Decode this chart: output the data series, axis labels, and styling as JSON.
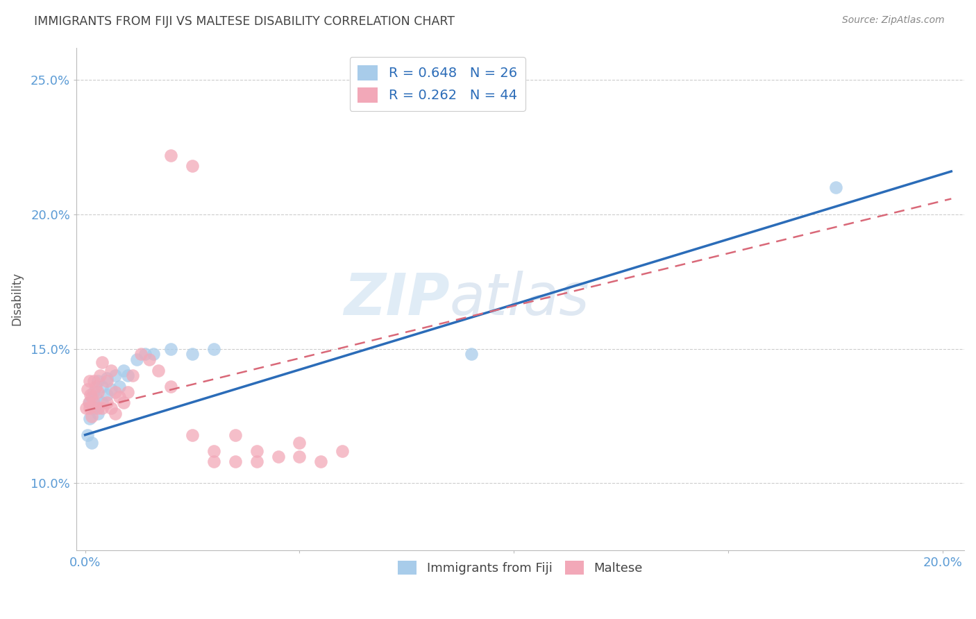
{
  "title": "IMMIGRANTS FROM FIJI VS MALTESE DISABILITY CORRELATION CHART",
  "source": "Source: ZipAtlas.com",
  "ylabel_label": "Disability",
  "xlim": [
    -0.002,
    0.205
  ],
  "ylim": [
    0.075,
    0.262
  ],
  "fiji_R": 0.648,
  "fiji_N": 26,
  "maltese_R": 0.262,
  "maltese_N": 44,
  "fiji_color": "#A8CCEA",
  "maltese_color": "#F2A8B8",
  "fiji_line_color": "#2B6CB8",
  "maltese_line_color": "#D96878",
  "watermark_zip": "ZIP",
  "watermark_atlas": "atlas",
  "fiji_x": [
    0.0005,
    0.001,
    0.001,
    0.0015,
    0.002,
    0.002,
    0.0025,
    0.003,
    0.003,
    0.004,
    0.004,
    0.005,
    0.005,
    0.006,
    0.007,
    0.008,
    0.009,
    0.01,
    0.012,
    0.014,
    0.016,
    0.02,
    0.025,
    0.03,
    0.09,
    0.175
  ],
  "fiji_y": [
    0.118,
    0.124,
    0.13,
    0.115,
    0.128,
    0.134,
    0.132,
    0.126,
    0.138,
    0.13,
    0.136,
    0.133,
    0.139,
    0.135,
    0.14,
    0.136,
    0.142,
    0.14,
    0.146,
    0.148,
    0.148,
    0.15,
    0.148,
    0.15,
    0.148,
    0.21
  ],
  "maltese_x": [
    0.0003,
    0.0005,
    0.0008,
    0.001,
    0.001,
    0.0012,
    0.0015,
    0.0015,
    0.002,
    0.002,
    0.0025,
    0.003,
    0.003,
    0.0035,
    0.004,
    0.004,
    0.005,
    0.005,
    0.006,
    0.006,
    0.007,
    0.007,
    0.008,
    0.009,
    0.01,
    0.011,
    0.013,
    0.015,
    0.017,
    0.02,
    0.025,
    0.03,
    0.035,
    0.04,
    0.05,
    0.06,
    0.02,
    0.025,
    0.03,
    0.035,
    0.04,
    0.045,
    0.05,
    0.055
  ],
  "maltese_y": [
    0.128,
    0.135,
    0.13,
    0.128,
    0.138,
    0.133,
    0.125,
    0.132,
    0.13,
    0.138,
    0.136,
    0.128,
    0.134,
    0.14,
    0.128,
    0.145,
    0.13,
    0.138,
    0.128,
    0.142,
    0.134,
    0.126,
    0.132,
    0.13,
    0.134,
    0.14,
    0.148,
    0.146,
    0.142,
    0.136,
    0.118,
    0.112,
    0.118,
    0.108,
    0.11,
    0.112,
    0.222,
    0.218,
    0.108,
    0.108,
    0.112,
    0.11,
    0.115,
    0.108
  ],
  "grid_color": "#CCCCCC",
  "background_color": "#FFFFFF",
  "title_color": "#444444",
  "axis_color": "#5B9BD5"
}
